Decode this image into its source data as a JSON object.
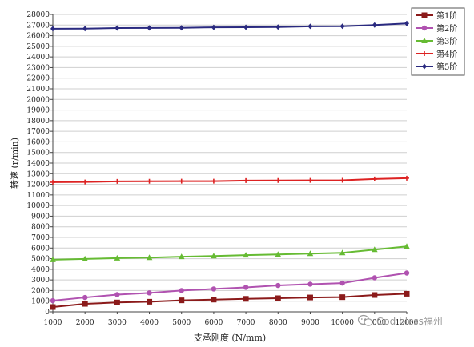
{
  "chart_data": {
    "type": "line",
    "title": "",
    "xlabel": "支承刚度 (N/mm)",
    "ylabel": "转速 (r/min)",
    "x": [
      1000,
      2000,
      3000,
      4000,
      5000,
      6000,
      7000,
      8000,
      9000,
      10000,
      11000,
      12000
    ],
    "x_tick_labels": [
      "1000",
      "2000",
      "3000",
      "4000",
      "5000",
      "6000",
      "7000",
      "8000",
      "9000",
      "10000",
      "11000",
      "12000"
    ],
    "xlim": [
      1000,
      12000
    ],
    "ylim": [
      0,
      28000
    ],
    "y_ticks": [
      0,
      1000,
      2000,
      3000,
      4000,
      5000,
      6000,
      7000,
      8000,
      9000,
      10000,
      11000,
      12000,
      13000,
      14000,
      15000,
      16000,
      17000,
      18000,
      19000,
      20000,
      21000,
      22000,
      23000,
      24000,
      25000,
      26000,
      27000,
      28000
    ],
    "y_tick_labels": [
      "0",
      "1000",
      "2000",
      "3000",
      "4000",
      "5000",
      "6000",
      "7000",
      "8000",
      "9000",
      "10000",
      "11000",
      "12000",
      "13000",
      "14000",
      "15000",
      "16000",
      "17000",
      "18000",
      "19000",
      "20000",
      "21000",
      "22000",
      "23000",
      "24000",
      "25000",
      "26000",
      "27000",
      "28000"
    ],
    "grid": "horizontal",
    "legend": "top-right",
    "series": [
      {
        "name": "第1阶",
        "color": "#8b1a1a",
        "marker": "square",
        "values": [
          450,
          750,
          880,
          950,
          1080,
          1150,
          1220,
          1280,
          1350,
          1380,
          1580,
          1700
        ]
      },
      {
        "name": "第2阶",
        "color": "#b052b0",
        "marker": "circle",
        "values": [
          1050,
          1350,
          1620,
          1780,
          2000,
          2150,
          2300,
          2480,
          2600,
          2700,
          3200,
          3650
        ]
      },
      {
        "name": "第3阶",
        "color": "#66bb33",
        "marker": "triangle",
        "values": [
          4900,
          4980,
          5050,
          5100,
          5180,
          5250,
          5330,
          5400,
          5480,
          5550,
          5850,
          6150
        ]
      },
      {
        "name": "第4阶",
        "color": "#dd2222",
        "marker": "plus",
        "values": [
          12200,
          12220,
          12280,
          12290,
          12300,
          12300,
          12350,
          12360,
          12370,
          12380,
          12500,
          12580
        ]
      },
      {
        "name": "第5阶",
        "color": "#2a2a80",
        "marker": "diamond",
        "values": [
          26650,
          26660,
          26720,
          26730,
          26740,
          26790,
          26800,
          26810,
          26880,
          26890,
          27000,
          27150
        ]
      }
    ]
  },
  "watermark": {
    "text": "God bless福州",
    "icon": "wechat-icon"
  }
}
